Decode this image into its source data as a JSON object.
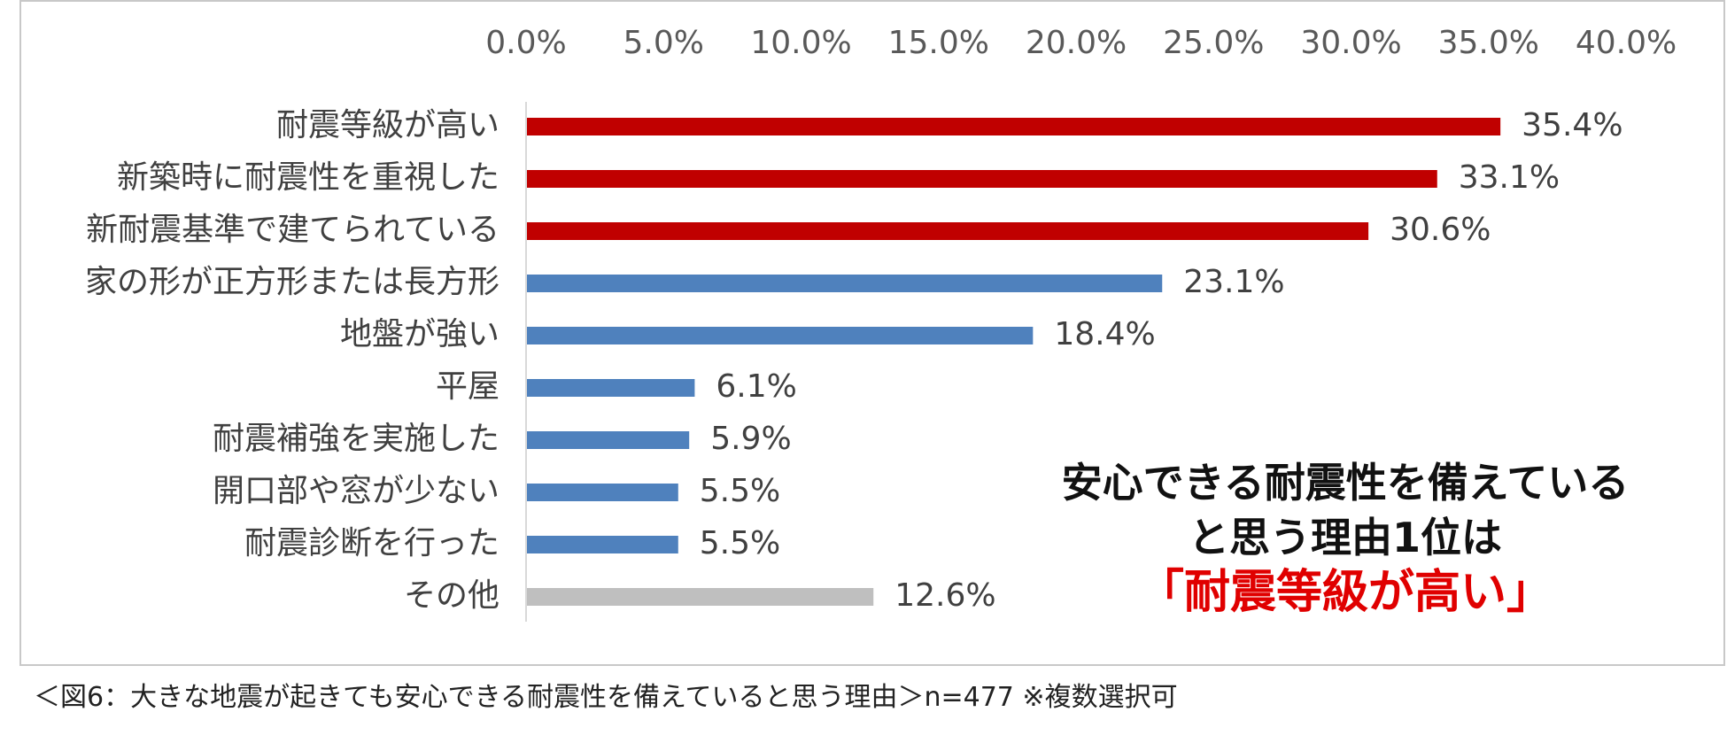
{
  "chart_data": {
    "type": "bar",
    "orientation": "horizontal",
    "categories": [
      "耐震等級が高い",
      "新築時に耐震性を重視した",
      "新耐震基準で建てられている",
      "家の形が正方形または長方形",
      "地盤が強い",
      "平屋",
      "耐震補強を実施した",
      "開口部や窓が少ない",
      "耐震診断を行った",
      "その他"
    ],
    "values": [
      35.4,
      33.1,
      30.6,
      23.1,
      18.4,
      6.1,
      5.9,
      5.5,
      5.5,
      12.6
    ],
    "value_labels": [
      "35.4%",
      "33.1%",
      "30.6%",
      "23.1%",
      "18.4%",
      "6.1%",
      "5.9%",
      "5.5%",
      "5.5%",
      "12.6%"
    ],
    "bar_colors": [
      "#c00000",
      "#c00000",
      "#c00000",
      "#4f81bd",
      "#4f81bd",
      "#4f81bd",
      "#4f81bd",
      "#4f81bd",
      "#4f81bd",
      "#bfbfbf"
    ],
    "xlim": [
      0,
      40
    ],
    "x_ticks": [
      0,
      5,
      10,
      15,
      20,
      25,
      30,
      35,
      40
    ],
    "x_tick_labels": [
      "0.0%",
      "5.0%",
      "10.0%",
      "15.0%",
      "20.0%",
      "25.0%",
      "30.0%",
      "35.0%",
      "40.0%"
    ],
    "x_axis_position": "top",
    "grid": false,
    "legend": "none"
  },
  "callout": {
    "line1": "安心できる耐震性を備えている",
    "line2": "と思う理由1位は",
    "highlight": "「耐震等級が高い」",
    "highlight_color": "#e00000"
  },
  "caption": "＜図6：大きな地震が起きても安心できる耐震性を備えていると思う理由＞n=477 ※複数選択可"
}
